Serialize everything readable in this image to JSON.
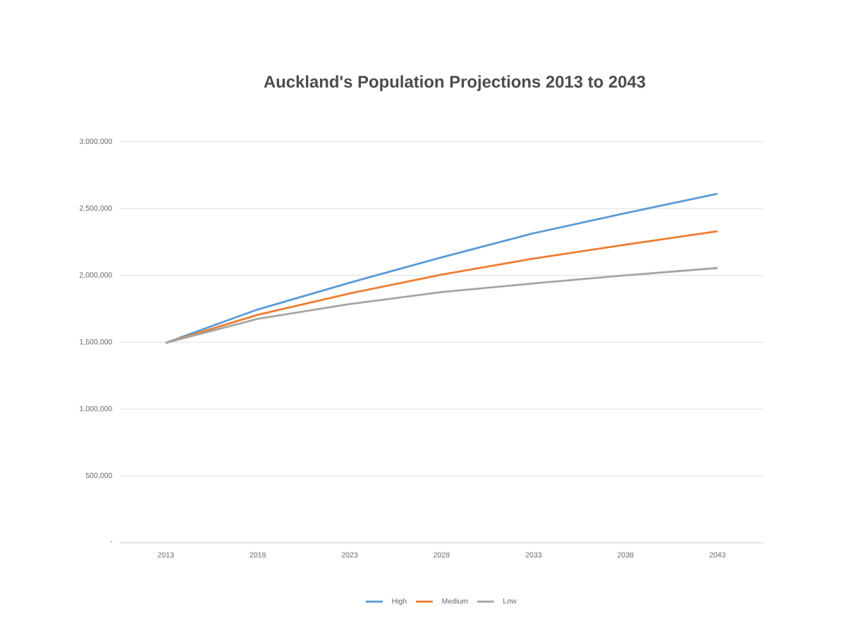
{
  "chart_data": {
    "type": "line",
    "title": "Auckland's Population Projections 2013 to 2043",
    "categories": [
      "2013",
      "2018",
      "2023",
      "2028",
      "2033",
      "2038",
      "2043"
    ],
    "series": [
      {
        "name": "High",
        "color": "#5b9bd5",
        "values": [
          1495000,
          1745000,
          1945000,
          2135000,
          2315000,
          2465000,
          2610000
        ]
      },
      {
        "name": "Medium",
        "color": "#ed7d31",
        "values": [
          1495000,
          1705000,
          1865000,
          2005000,
          2125000,
          2230000,
          2330000
        ]
      },
      {
        "name": "Low",
        "color": "#a5a5a5",
        "values": [
          1495000,
          1675000,
          1785000,
          1875000,
          1940000,
          2000000,
          2055000
        ]
      }
    ],
    "ylim": [
      0,
      3000000
    ],
    "yticks": [
      {
        "value": 0,
        "label": "-"
      },
      {
        "value": 500000,
        "label": "500,000"
      },
      {
        "value": 1000000,
        "label": "1,000,000"
      },
      {
        "value": 1500000,
        "label": "1,500,000"
      },
      {
        "value": 2000000,
        "label": "2,000,000"
      },
      {
        "value": 2500000,
        "label": "2,500,000"
      },
      {
        "value": 3000000,
        "label": "3,000,000"
      }
    ],
    "grid": "y",
    "legend": "bottom"
  }
}
